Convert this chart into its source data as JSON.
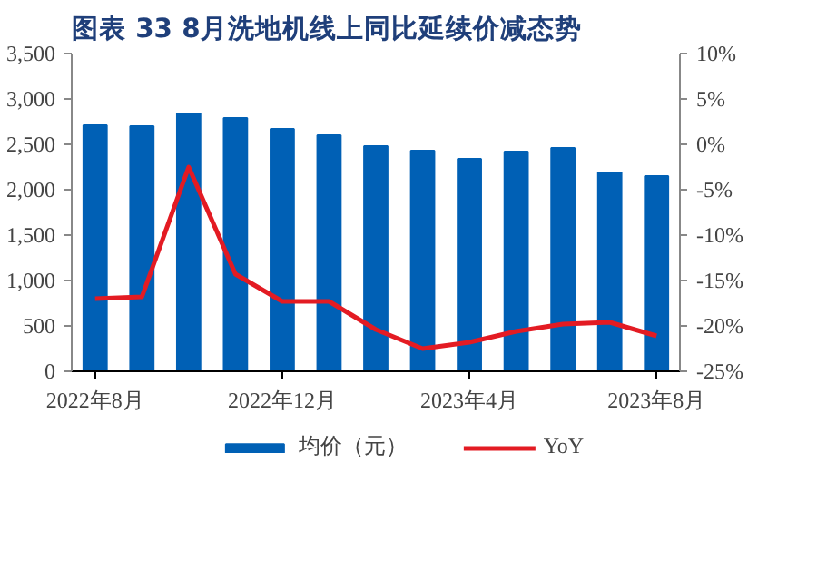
{
  "chart_data": {
    "type": "bar",
    "title": "图表 33   8月洗地机线上同比延续价减态势",
    "categories": [
      "2022年8月",
      null,
      null,
      null,
      "2022年12月",
      null,
      null,
      null,
      "2023年4月",
      null,
      null,
      null,
      "2023年8月"
    ],
    "series": [
      {
        "name": "均价（元）",
        "color": "#0060b5",
        "values": [
          2710,
          2700,
          2840,
          2790,
          2670,
          2600,
          2480,
          2430,
          2340,
          2420,
          2460,
          2190,
          2150
        ]
      },
      {
        "name": "YoY",
        "type": "line",
        "axis": "y2",
        "color": "#e31b23",
        "values": [
          -17.0,
          -16.8,
          -2.5,
          -14.3,
          -17.3,
          -17.3,
          -20.4,
          -22.5,
          -21.8,
          -20.6,
          -19.8,
          -19.6,
          -21.1
        ]
      }
    ],
    "ylim": [
      0,
      3500
    ],
    "yticks": [
      0,
      500,
      {
        "value": 1000,
        "label": "1,000"
      },
      {
        "value": 1500,
        "label": "1,500"
      },
      {
        "value": 2000,
        "label": "2,000"
      },
      {
        "value": 2500,
        "label": "2,500"
      },
      {
        "value": 3000,
        "label": "3,000"
      },
      {
        "value": 3500,
        "label": "3,500"
      }
    ],
    "y2lim": [
      -25,
      10
    ],
    "y2ticks": [
      {
        "value": -25,
        "label": "-25%"
      },
      {
        "value": -20,
        "label": "-20%"
      },
      {
        "value": -15,
        "label": "-15%"
      },
      {
        "value": -10,
        "label": "-10%"
      },
      {
        "value": -5,
        "label": "-5%"
      },
      {
        "value": 0,
        "label": "0%"
      },
      {
        "value": 5,
        "label": "5%"
      },
      {
        "value": 10,
        "label": "10%"
      }
    ],
    "grid": false,
    "legend": "bottom",
    "marker": "none",
    "line_style": "solid"
  }
}
